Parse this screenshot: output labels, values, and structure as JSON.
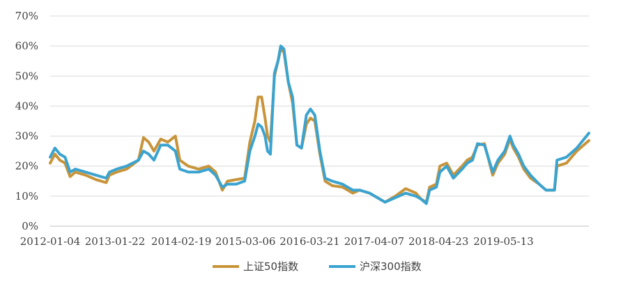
{
  "chart_data": {
    "type": "line",
    "title": "",
    "xlabel": "",
    "ylabel": "",
    "ylim": [
      0,
      70
    ],
    "y_ticks": [
      "0%",
      "10%",
      "20%",
      "30%",
      "40%",
      "50%",
      "60%",
      "70%"
    ],
    "x_tick_labels": [
      "2012-01-04",
      "2013-01-22",
      "2014-02-19",
      "2015-03-06",
      "2016-03-21",
      "2017-04-07",
      "2018-04-23",
      "2019-05-13"
    ],
    "x_range": [
      "2012-01-04",
      "2020-09-30"
    ],
    "grid": "horizontal",
    "legend_position": "bottom",
    "series": [
      {
        "name": "上证50指数",
        "color": "#C8943A",
        "points": [
          [
            "2012-01-04",
            21
          ],
          [
            "2012-02-01",
            24
          ],
          [
            "2012-03-01",
            22
          ],
          [
            "2012-04-01",
            21
          ],
          [
            "2012-05-01",
            16.5
          ],
          [
            "2012-06-01",
            18
          ],
          [
            "2012-08-01",
            17
          ],
          [
            "2012-10-01",
            15.5
          ],
          [
            "2012-12-01",
            14.5
          ],
          [
            "2012-12-20",
            17
          ],
          [
            "2013-02-01",
            18
          ],
          [
            "2013-04-01",
            19
          ],
          [
            "2013-06-10",
            22
          ],
          [
            "2013-07-10",
            29.5
          ],
          [
            "2013-08-10",
            28
          ],
          [
            "2013-09-10",
            25
          ],
          [
            "2013-10-20",
            29
          ],
          [
            "2013-12-01",
            28
          ],
          [
            "2014-01-15",
            30
          ],
          [
            "2014-02-10",
            22
          ],
          [
            "2014-04-01",
            20
          ],
          [
            "2014-06-01",
            19
          ],
          [
            "2014-08-01",
            20
          ],
          [
            "2014-09-10",
            18
          ],
          [
            "2014-10-20",
            12
          ],
          [
            "2014-11-20",
            15
          ],
          [
            "2015-01-10",
            15.5
          ],
          [
            "2015-03-01",
            16
          ],
          [
            "2015-04-01",
            28
          ],
          [
            "2015-05-01",
            35
          ],
          [
            "2015-05-20",
            43
          ],
          [
            "2015-06-10",
            43
          ],
          [
            "2015-06-30",
            36
          ],
          [
            "2015-07-15",
            30
          ],
          [
            "2015-08-01",
            28
          ],
          [
            "2015-08-25",
            50
          ],
          [
            "2015-09-15",
            55
          ],
          [
            "2015-10-01",
            59
          ],
          [
            "2015-10-20",
            58
          ],
          [
            "2015-11-15",
            48
          ],
          [
            "2015-12-10",
            41
          ],
          [
            "2016-01-05",
            27
          ],
          [
            "2016-02-01",
            26
          ],
          [
            "2016-03-01",
            34
          ],
          [
            "2016-03-25",
            36
          ],
          [
            "2016-04-20",
            35
          ],
          [
            "2016-05-20",
            24
          ],
          [
            "2016-06-20",
            15
          ],
          [
            "2016-08-01",
            13.5
          ],
          [
            "2016-10-01",
            13
          ],
          [
            "2016-12-01",
            11
          ],
          [
            "2017-01-10",
            12
          ],
          [
            "2017-03-10",
            11
          ],
          [
            "2017-04-10",
            10
          ],
          [
            "2017-06-10",
            8
          ],
          [
            "2017-08-10",
            10
          ],
          [
            "2017-10-10",
            12.5
          ],
          [
            "2017-12-10",
            11
          ],
          [
            "2018-01-10",
            9
          ],
          [
            "2018-02-10",
            8
          ],
          [
            "2018-03-01",
            13
          ],
          [
            "2018-04-10",
            14
          ],
          [
            "2018-05-01",
            20
          ],
          [
            "2018-06-10",
            21
          ],
          [
            "2018-07-20",
            17
          ],
          [
            "2018-09-10",
            20
          ],
          [
            "2018-10-10",
            22
          ],
          [
            "2018-11-10",
            23
          ],
          [
            "2018-12-10",
            27
          ],
          [
            "2019-01-20",
            27.5
          ],
          [
            "2019-03-10",
            17
          ],
          [
            "2019-04-10",
            21
          ],
          [
            "2019-05-20",
            24
          ],
          [
            "2019-06-20",
            29
          ],
          [
            "2019-07-10",
            26
          ],
          [
            "2019-08-10",
            23
          ],
          [
            "2019-09-10",
            19
          ],
          [
            "2019-10-20",
            16
          ],
          [
            "2019-12-10",
            14
          ],
          [
            "2020-01-20",
            12
          ],
          [
            "2020-03-10",
            12
          ],
          [
            "2020-03-25",
            20
          ],
          [
            "2020-05-20",
            21
          ],
          [
            "2020-07-20",
            25
          ],
          [
            "2020-09-30",
            28.5
          ]
        ]
      },
      {
        "name": "沪深300指数",
        "color": "#3AA3CF",
        "points": [
          [
            "2012-01-04",
            23
          ],
          [
            "2012-02-01",
            26
          ],
          [
            "2012-03-01",
            24
          ],
          [
            "2012-04-01",
            23
          ],
          [
            "2012-05-01",
            18
          ],
          [
            "2012-06-01",
            19
          ],
          [
            "2012-08-01",
            18
          ],
          [
            "2012-10-01",
            17
          ],
          [
            "2012-12-01",
            16
          ],
          [
            "2012-12-20",
            18
          ],
          [
            "2013-02-01",
            19
          ],
          [
            "2013-04-01",
            20
          ],
          [
            "2013-06-10",
            22
          ],
          [
            "2013-07-10",
            25
          ],
          [
            "2013-08-10",
            24
          ],
          [
            "2013-09-10",
            22
          ],
          [
            "2013-10-20",
            27
          ],
          [
            "2013-12-01",
            27
          ],
          [
            "2014-01-15",
            25
          ],
          [
            "2014-02-10",
            19
          ],
          [
            "2014-04-01",
            18
          ],
          [
            "2014-06-01",
            18
          ],
          [
            "2014-08-01",
            19
          ],
          [
            "2014-09-10",
            17
          ],
          [
            "2014-10-20",
            13
          ],
          [
            "2014-11-20",
            14
          ],
          [
            "2015-01-10",
            14
          ],
          [
            "2015-03-01",
            15
          ],
          [
            "2015-04-01",
            25
          ],
          [
            "2015-05-01",
            30
          ],
          [
            "2015-05-20",
            34
          ],
          [
            "2015-06-10",
            33
          ],
          [
            "2015-06-30",
            30
          ],
          [
            "2015-07-15",
            25
          ],
          [
            "2015-08-01",
            24
          ],
          [
            "2015-08-25",
            51
          ],
          [
            "2015-09-15",
            55
          ],
          [
            "2015-10-01",
            60
          ],
          [
            "2015-10-20",
            59
          ],
          [
            "2015-11-15",
            48
          ],
          [
            "2015-12-10",
            43
          ],
          [
            "2016-01-05",
            27
          ],
          [
            "2016-02-01",
            26
          ],
          [
            "2016-03-01",
            37
          ],
          [
            "2016-03-25",
            39
          ],
          [
            "2016-04-20",
            37
          ],
          [
            "2016-05-20",
            25
          ],
          [
            "2016-06-20",
            16
          ],
          [
            "2016-08-01",
            15
          ],
          [
            "2016-10-01",
            14
          ],
          [
            "2016-12-01",
            12
          ],
          [
            "2017-01-10",
            12
          ],
          [
            "2017-03-10",
            11
          ],
          [
            "2017-04-10",
            10
          ],
          [
            "2017-06-10",
            8
          ],
          [
            "2017-08-10",
            9.5
          ],
          [
            "2017-10-10",
            11
          ],
          [
            "2017-12-10",
            10
          ],
          [
            "2018-01-10",
            9
          ],
          [
            "2018-02-10",
            7.5
          ],
          [
            "2018-03-01",
            12
          ],
          [
            "2018-04-10",
            13
          ],
          [
            "2018-05-01",
            18
          ],
          [
            "2018-06-10",
            20
          ],
          [
            "2018-07-20",
            16
          ],
          [
            "2018-09-10",
            19
          ],
          [
            "2018-10-10",
            21
          ],
          [
            "2018-11-10",
            22
          ],
          [
            "2018-12-10",
            27.5
          ],
          [
            "2019-01-20",
            27
          ],
          [
            "2019-03-10",
            18
          ],
          [
            "2019-04-10",
            22
          ],
          [
            "2019-05-20",
            25
          ],
          [
            "2019-06-20",
            30
          ],
          [
            "2019-07-10",
            27
          ],
          [
            "2019-08-10",
            24
          ],
          [
            "2019-09-10",
            20
          ],
          [
            "2019-10-20",
            17
          ],
          [
            "2019-12-10",
            14
          ],
          [
            "2020-01-20",
            12
          ],
          [
            "2020-03-10",
            12
          ],
          [
            "2020-03-25",
            22
          ],
          [
            "2020-05-20",
            23
          ],
          [
            "2020-07-20",
            26
          ],
          [
            "2020-09-30",
            31
          ]
        ]
      }
    ]
  }
}
